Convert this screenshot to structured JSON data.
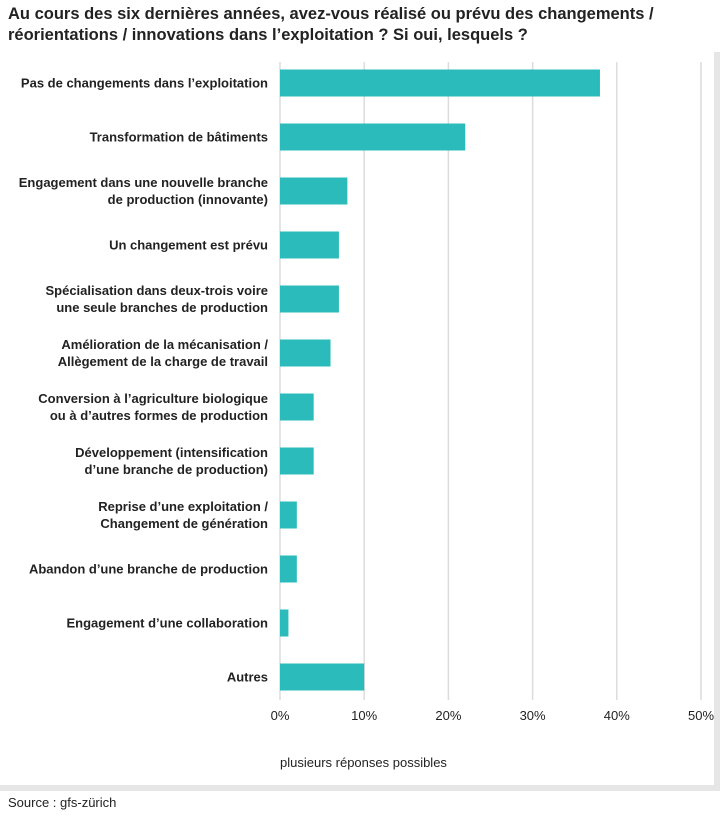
{
  "chart_data": {
    "type": "bar",
    "orientation": "horizontal",
    "title": "Au cours des six dernières années, avez-vous réalisé ou prévu des changements / réorientations / innovations dans l’exploitation ? Si oui, lesquels ?",
    "categories": [
      "Pas de changements dans l’exploitation",
      "Transformation de bâtiments",
      "Engagement dans une nouvelle branche\nde production (innovante)",
      "Un changement est prévu",
      "Spécialisation dans deux-trois voire\nune seule branches de production",
      "Amélioration de la mécanisation /\nAllègement de la charge de travail",
      "Conversion à l’agriculture biologique\nou à d’autres formes de production",
      "Développement (intensification\nd’une branche de production)",
      "Reprise d’une exploitation /\nChangement de génération",
      "Abandon d’une branche de production",
      "Engagement d’une collaboration",
      "Autres"
    ],
    "values": [
      38,
      22,
      8,
      7,
      7,
      6,
      4,
      4,
      2,
      2,
      1,
      10
    ],
    "color": "#2bbbbb",
    "xlim": [
      0,
      50
    ],
    "xticks": [
      {
        "value": 0,
        "label": "0%"
      },
      {
        "value": 10,
        "label": "10%"
      },
      {
        "value": 20,
        "label": "20%"
      },
      {
        "value": 30,
        "label": "30%"
      },
      {
        "value": 40,
        "label": "40%"
      },
      {
        "value": 50,
        "label": "50%"
      }
    ],
    "grid": true,
    "note": "plusieurs réponses possibles",
    "source": "Source : gfs-zürich"
  }
}
